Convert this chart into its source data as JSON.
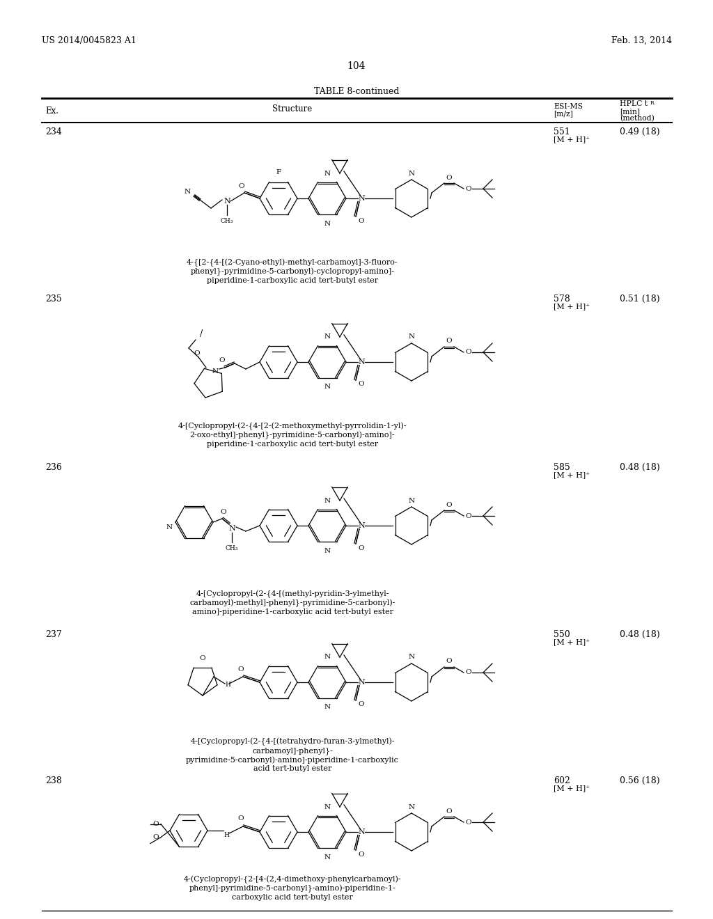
{
  "page_header_left": "US 2014/0045823 A1",
  "page_header_right": "Feb. 13, 2014",
  "page_number": "104",
  "table_title": "TABLE 8-continued",
  "entries": [
    {
      "ex": "234",
      "ms_val": "551",
      "ms_ion": "[M + H]⁺",
      "hplc": "0.49 (18)",
      "name_lines": [
        "4-{[2-{4-[(2-Cyano-ethyl)-methyl-carbamoyl]-3-fluoro-",
        "phenyl}-pyrimidine-5-carbonyl)-cyclopropyl-amino]-",
        "piperidine-1-carboxylic acid tert-butyl ester"
      ]
    },
    {
      "ex": "235",
      "ms_val": "578",
      "ms_ion": "[M + H]⁺",
      "hplc": "0.51 (18)",
      "name_lines": [
        "4-[Cyclopropyl-(2-{4-[2-(2-methoxymethyl-pyrrolidin-1-yl)-",
        "2-oxo-ethyl]-phenyl}-pyrimidine-5-carbonyl)-amino]-",
        "piperidine-1-carboxylic acid tert-butyl ester"
      ]
    },
    {
      "ex": "236",
      "ms_val": "585",
      "ms_ion": "[M + H]⁺",
      "hplc": "0.48 (18)",
      "name_lines": [
        "4-[Cyclopropyl-(2-{4-[(methyl-pyridin-3-ylmethyl-",
        "carbamoyl)-methyl]-phenyl}-pyrimidine-5-carbonyl)-",
        "amino]-piperidine-1-carboxylic acid tert-butyl ester"
      ]
    },
    {
      "ex": "237",
      "ms_val": "550",
      "ms_ion": "[M + H]⁺",
      "hplc": "0.48 (18)",
      "name_lines": [
        "4-[Cyclopropyl-(2-{4-[(tetrahydro-furan-3-ylmethyl)-",
        "carbamoyl]-phenyl}-",
        "pyrimidine-5-carbonyl)-amino]-piperidine-1-carboxylic",
        "acid tert-butyl ester"
      ]
    },
    {
      "ex": "238",
      "ms_val": "602",
      "ms_ion": "[M + H]⁺",
      "hplc": "0.56 (18)",
      "name_lines": [
        "4-(Cyclopropyl-{2-[4-(2,4-dimethoxy-phenylcarbamoyl)-",
        "phenyl]-pyrimidine-5-carbonyl}-amino)-piperidine-1-",
        "carboxylic acid tert-butyl ester"
      ]
    }
  ]
}
